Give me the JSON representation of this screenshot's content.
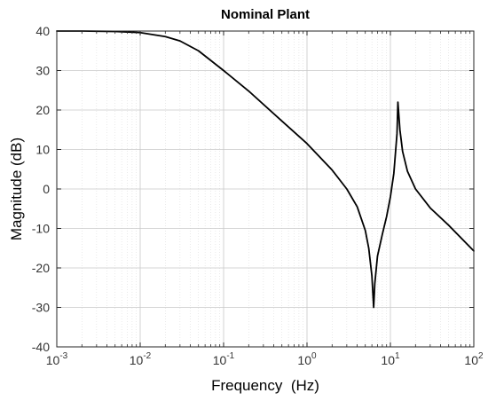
{
  "chart_data": {
    "type": "line",
    "title": "Nominal Plant",
    "xlabel": "Frequency  (Hz)",
    "ylabel": "Magnitude (dB)",
    "xscale": "log",
    "xlim": [
      0.001,
      100
    ],
    "ylim": [
      -40,
      40
    ],
    "grid": true,
    "x_tick_labels": [
      {
        "base": "10",
        "exp": "-3"
      },
      {
        "base": "10",
        "exp": "-2"
      },
      {
        "base": "10",
        "exp": "-1"
      },
      {
        "base": "10",
        "exp": "0"
      },
      {
        "base": "10",
        "exp": "1"
      },
      {
        "base": "10",
        "exp": "2"
      }
    ],
    "y_ticks": [
      40,
      30,
      20,
      10,
      0,
      -10,
      -20,
      -30,
      -40
    ],
    "series": [
      {
        "color": "#000000",
        "x": [
          0.001,
          0.002,
          0.005,
          0.01,
          0.02,
          0.03,
          0.05,
          0.1,
          0.2,
          0.5,
          1,
          2,
          3,
          4,
          5,
          5.5,
          6,
          6.3,
          6.5,
          7,
          8,
          9,
          10,
          11,
          12,
          12.3,
          13,
          14,
          16,
          20,
          30,
          50,
          100
        ],
        "y": [
          40,
          40,
          39.9,
          39.6,
          38.6,
          37.5,
          35,
          30,
          24.8,
          17.2,
          11.5,
          4.8,
          0,
          -4.5,
          -10.5,
          -15,
          -22,
          -30,
          -24,
          -17,
          -11.5,
          -7,
          -2,
          4,
          14,
          22,
          15,
          9.5,
          4.5,
          0,
          -4.8,
          -9.2,
          -15.7
        ]
      }
    ]
  }
}
